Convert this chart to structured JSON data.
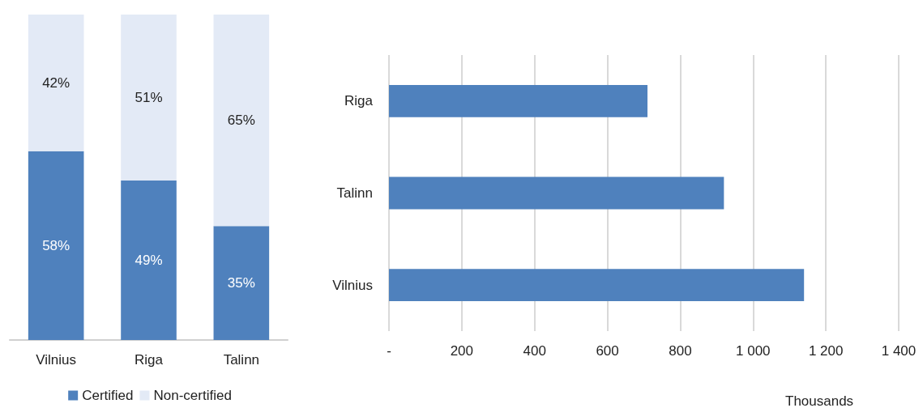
{
  "chart_data": [
    {
      "type": "bar",
      "stacked": true,
      "categories": [
        "Vilnius",
        "Riga",
        "Talinn"
      ],
      "ylim": [
        0,
        100
      ],
      "tick_labels": "x",
      "grid": false,
      "legend": "bottom",
      "series": [
        {
          "name": "Certified",
          "color": "#4f81bd",
          "values": [
            58,
            49,
            35
          ],
          "value_labels": [
            "58%",
            "49%",
            "35%"
          ]
        },
        {
          "name": "Non-certified",
          "color": "#e3eaf6",
          "values": [
            42,
            51,
            65
          ],
          "value_labels": [
            "42%",
            "51%",
            "65%"
          ]
        }
      ]
    },
    {
      "type": "bar",
      "orientation": "horizontal",
      "categories": [
        "Riga",
        "Talinn",
        "Vilnius"
      ],
      "values": [
        710,
        920,
        1140
      ],
      "color": "#4f81bd",
      "xlim": [
        0,
        1400
      ],
      "xticks": [
        {
          "value": 0,
          "label": "-"
        },
        200,
        400,
        600,
        800,
        {
          "value": 1000,
          "label": "1 000"
        },
        {
          "value": 1200,
          "label": "1 200"
        },
        {
          "value": 1400,
          "label": "1 400"
        }
      ],
      "xlabel": "Thousands",
      "grid": "x",
      "legend": false
    }
  ]
}
